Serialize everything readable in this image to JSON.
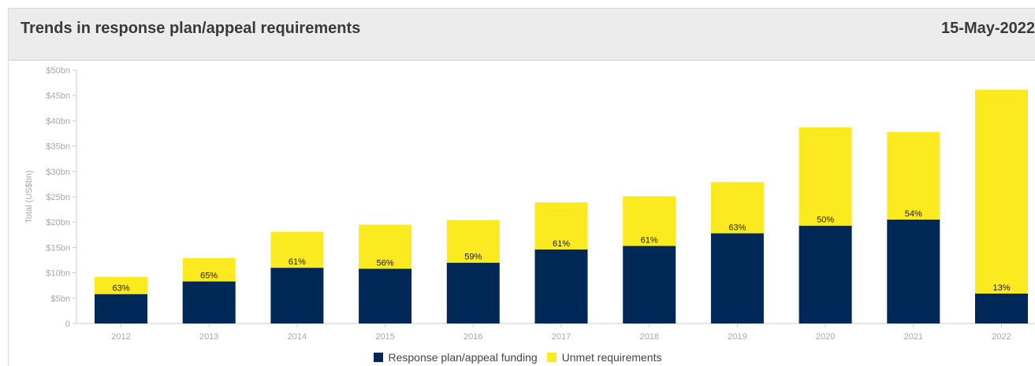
{
  "header": {
    "title": "Trends in response plan/appeal requirements",
    "date": "15-May-2022"
  },
  "colors": {
    "funded": "#002856",
    "unmet": "#fcea20",
    "header_bg": "#ececec",
    "axis_text": "#a8a8a8"
  },
  "chart_data": {
    "type": "bar",
    "stacked": true,
    "categories": [
      "2012",
      "2013",
      "2014",
      "2015",
      "2016",
      "2017",
      "2018",
      "2019",
      "2020",
      "2021",
      "2022"
    ],
    "series": [
      {
        "name": "Response plan/appeal funding",
        "color": "#002856",
        "values": [
          5.8,
          8.3,
          11.0,
          10.8,
          12.0,
          14.6,
          15.3,
          17.8,
          19.3,
          20.5,
          5.9
        ]
      },
      {
        "name": "Unmet requirements",
        "color": "#fcea20",
        "values": [
          3.4,
          4.6,
          7.1,
          8.7,
          8.4,
          9.3,
          9.8,
          10.1,
          19.4,
          17.3,
          40.2
        ]
      }
    ],
    "data_labels": [
      "63%",
      "65%",
      "61%",
      "56%",
      "59%",
      "61%",
      "61%",
      "63%",
      "50%",
      "54%",
      "13%"
    ],
    "ylabel": "Total (US$bn)",
    "ylim": [
      0,
      50
    ],
    "yticks": [
      {
        "value": 0,
        "label": "0"
      },
      {
        "value": 5,
        "label": "$5bn"
      },
      {
        "value": 10,
        "label": "$10bn"
      },
      {
        "value": 15,
        "label": "$15bn"
      },
      {
        "value": 20,
        "label": "$20bn"
      },
      {
        "value": 25,
        "label": "$25bn"
      },
      {
        "value": 30,
        "label": "$30bn"
      },
      {
        "value": 35,
        "label": "$35bn"
      },
      {
        "value": 40,
        "label": "$40bn"
      },
      {
        "value": 45,
        "label": "$45bn"
      },
      {
        "value": 50,
        "label": "$50bn"
      }
    ],
    "grid": false,
    "legend_position": "bottom"
  }
}
